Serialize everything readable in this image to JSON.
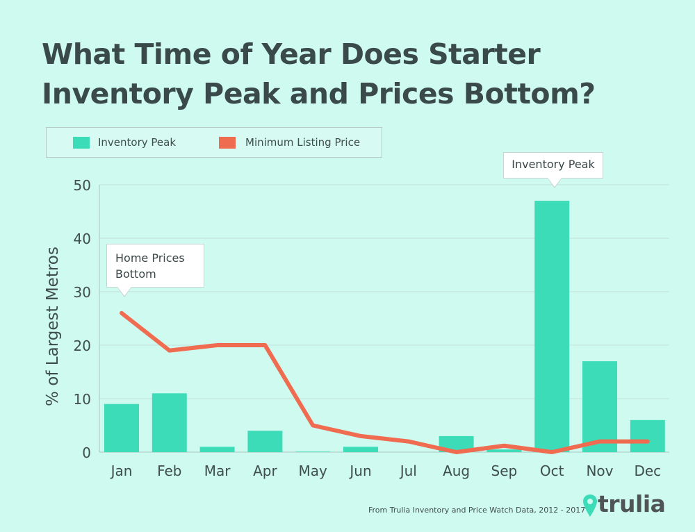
{
  "title": "What Time of Year Does Starter Inventory Peak and Prices Bottom?",
  "legend": {
    "bars_label": "Inventory Peak",
    "line_label": "Minimum Listing Price"
  },
  "callouts": {
    "prices_bottom": "Home Prices Bottom",
    "inventory_peak": "Inventory Peak"
  },
  "source": "From Trulia Inventory and Price Watch Data, 2012 - 2017",
  "brand": "trulia",
  "colors": {
    "background": "#cffaf0",
    "bar": "#3ddcb8",
    "line": "#f06c50",
    "grid": "#bfe0d7",
    "text": "#3f4d4d"
  },
  "chart_data": {
    "type": "bar",
    "categories": [
      "Jan",
      "Feb",
      "Mar",
      "Apr",
      "May",
      "Jun",
      "Jul",
      "Aug",
      "Sep",
      "Oct",
      "Nov",
      "Dec"
    ],
    "series": [
      {
        "name": "Inventory Peak",
        "type": "bar",
        "values": [
          9,
          11,
          1,
          4,
          0.1,
          1,
          0,
          3,
          0.5,
          47,
          17,
          6
        ]
      },
      {
        "name": "Minimum Listing Price",
        "type": "line",
        "values": [
          26,
          19,
          20,
          20,
          5,
          3,
          2,
          0,
          1.2,
          0,
          2,
          2
        ]
      }
    ],
    "ylabel": "% of Largest Metros",
    "xlabel": "",
    "yticks": [
      0,
      10,
      20,
      30,
      40,
      50
    ],
    "ylim": [
      0,
      50
    ],
    "grid": true,
    "legend_position": "top-left"
  }
}
